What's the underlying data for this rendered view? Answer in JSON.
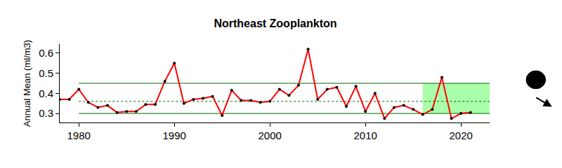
{
  "chart_data": {
    "type": "line",
    "title": "Northeast Zooplankton",
    "y_label": "Annual Mean (ml/m3)",
    "x": [
      1978,
      1979,
      1980,
      1981,
      1982,
      1983,
      1984,
      1985,
      1986,
      1987,
      1988,
      1989,
      1990,
      1991,
      1992,
      1993,
      1994,
      1995,
      1996,
      1997,
      1998,
      1999,
      2000,
      2001,
      2002,
      2003,
      2004,
      2005,
      2006,
      2007,
      2008,
      2009,
      2010,
      2011,
      2012,
      2013,
      2014,
      2015,
      2016,
      2017,
      2018,
      2019,
      2020,
      2021
    ],
    "series": [
      {
        "name": "Northeast Zooplankton",
        "color": "#ff0000",
        "marker": "circle",
        "line_style": "solid",
        "values": [
          0.37,
          0.37,
          0.42,
          0.355,
          0.33,
          0.34,
          0.305,
          0.31,
          0.31,
          0.345,
          0.345,
          0.46,
          0.55,
          0.35,
          0.37,
          0.375,
          0.385,
          0.29,
          0.415,
          0.365,
          0.365,
          0.355,
          0.36,
          0.42,
          0.39,
          0.44,
          0.62,
          0.37,
          0.42,
          0.43,
          0.335,
          0.435,
          0.31,
          0.4,
          0.275,
          0.33,
          0.34,
          0.32,
          0.295,
          0.32,
          0.48,
          0.275,
          0.3,
          0.305
        ]
      }
    ],
    "hlines": [
      {
        "value": 0.45,
        "x": [
          1980,
          2023
        ],
        "line_style": "solid",
        "color": "#006400"
      },
      {
        "value": 0.36,
        "x": [
          1980,
          2023
        ],
        "line_style": "dotted",
        "color": "#006400"
      },
      {
        "value": 0.3,
        "x": [
          1980,
          2023
        ],
        "line_style": "solid",
        "color": "#006400"
      }
    ],
    "highlight": {
      "x": [
        2016,
        2023
      ],
      "y": [
        0.3,
        0.45
      ],
      "color": "#aaffaa"
    },
    "xlim": [
      1978,
      2023
    ],
    "xticks": [
      1980,
      1990,
      2000,
      2010,
      2020
    ],
    "ylim": [
      0.255,
      0.645
    ],
    "yticks": [
      0.3,
      0.4,
      0.5,
      0.6
    ],
    "grid": false
  }
}
